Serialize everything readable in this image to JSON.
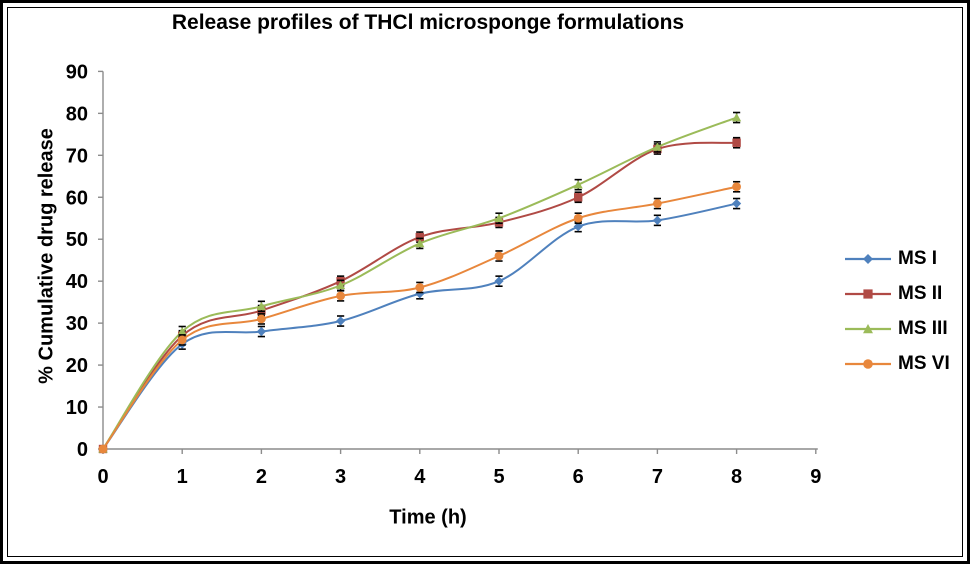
{
  "chart_data": {
    "type": "line",
    "title": "Release profiles of THCl microsponge formulations",
    "xlabel": "Time (h)",
    "ylabel": "% Cumulative drug release",
    "xlim": [
      0,
      9
    ],
    "ylim": [
      0,
      90
    ],
    "xticks": [
      0,
      1,
      2,
      3,
      4,
      5,
      6,
      7,
      8,
      9
    ],
    "yticks": [
      0,
      10,
      20,
      30,
      40,
      50,
      60,
      70,
      80,
      90
    ],
    "grid": false,
    "legend_position": "right",
    "line_style": "smooth",
    "error_bar_halfwidth": 1.2,
    "x": [
      0,
      1,
      2,
      3,
      4,
      5,
      6,
      7,
      8
    ],
    "series": [
      {
        "name": "MS I",
        "marker": "diamond",
        "color": "#4F81BD",
        "values": [
          0,
          25,
          28,
          30.5,
          37,
          40,
          53,
          54.5,
          58.5
        ]
      },
      {
        "name": "MS II",
        "marker": "square",
        "color": "#B04A45",
        "values": [
          0,
          27,
          33,
          40,
          50.5,
          54,
          60,
          71.5,
          73
        ]
      },
      {
        "name": "MS III",
        "marker": "triangle",
        "color": "#9BBB59",
        "values": [
          0,
          28,
          34,
          39,
          49,
          55,
          63,
          72,
          79
        ]
      },
      {
        "name": "MS VI",
        "marker": "circle",
        "color": "#E8873C",
        "values": [
          0,
          26,
          31,
          36.5,
          38.5,
          46,
          55,
          58.5,
          62.5
        ]
      }
    ],
    "axis_color": "#8C8C8C",
    "error_bar_color": "#000000",
    "text_color": "#000000"
  }
}
